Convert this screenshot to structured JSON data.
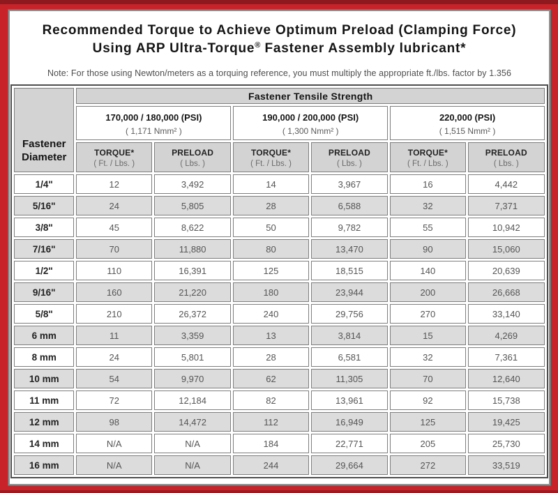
{
  "colors": {
    "frame_red": "#C9232A",
    "frame_dark_red": "#8E1A1F",
    "header_gray": "#D3D3D3",
    "row_shade_gray": "#DCDCDC"
  },
  "title": {
    "line1": "Recommended Torque to Achieve Optimum Preload (Clamping Force)",
    "line2_pre": "Using ARP Ultra-Torque",
    "line2_reg": "®",
    "line2_post": " Fastener Assembly lubricant*",
    "note": "Note: For those using Newton/meters as a torquing reference, you must multiply the appropriate ft./lbs. factor by 1.356"
  },
  "table": {
    "tensile_header": "Fastener Tensile Strength",
    "diameter_header_line1": "Fastener",
    "diameter_header_line2": "Diameter",
    "strength_groups": [
      {
        "psi": "170,000 / 180,000 (PSI)",
        "nmm": "( 1,171 Nmm² )"
      },
      {
        "psi": "190,000 / 200,000 (PSI)",
        "nmm": "( 1,300 Nmm² )"
      },
      {
        "psi": "220,000 (PSI)",
        "nmm": "( 1,515 Nmm² )"
      }
    ],
    "col_headers": {
      "torque": "TORQUE*",
      "torque_unit": "( Ft. / Lbs. )",
      "preload": "PRELOAD",
      "preload_unit": "( Lbs. )"
    },
    "rows": [
      {
        "d": "1/4\"",
        "v": [
          "12",
          "3,492",
          "14",
          "3,967",
          "16",
          "4,442"
        ]
      },
      {
        "d": "5/16\"",
        "v": [
          "24",
          "5,805",
          "28",
          "6,588",
          "32",
          "7,371"
        ]
      },
      {
        "d": "3/8\"",
        "v": [
          "45",
          "8,622",
          "50",
          "9,782",
          "55",
          "10,942"
        ]
      },
      {
        "d": "7/16\"",
        "v": [
          "70",
          "11,880",
          "80",
          "13,470",
          "90",
          "15,060"
        ]
      },
      {
        "d": "1/2\"",
        "v": [
          "110",
          "16,391",
          "125",
          "18,515",
          "140",
          "20,639"
        ]
      },
      {
        "d": "9/16\"",
        "v": [
          "160",
          "21,220",
          "180",
          "23,944",
          "200",
          "26,668"
        ]
      },
      {
        "d": "5/8\"",
        "v": [
          "210",
          "26,372",
          "240",
          "29,756",
          "270",
          "33,140"
        ]
      },
      {
        "d": "6 mm",
        "v": [
          "11",
          "3,359",
          "13",
          "3,814",
          "15",
          "4,269"
        ]
      },
      {
        "d": "8 mm",
        "v": [
          "24",
          "5,801",
          "28",
          "6,581",
          "32",
          "7,361"
        ]
      },
      {
        "d": "10 mm",
        "v": [
          "54",
          "9,970",
          "62",
          "11,305",
          "70",
          "12,640"
        ]
      },
      {
        "d": "11 mm",
        "v": [
          "72",
          "12,184",
          "82",
          "13,961",
          "92",
          "15,738"
        ]
      },
      {
        "d": "12 mm",
        "v": [
          "98",
          "14,472",
          "112",
          "16,949",
          "125",
          "19,425"
        ]
      },
      {
        "d": "14 mm",
        "v": [
          "N/A",
          "N/A",
          "184",
          "22,771",
          "205",
          "25,730"
        ]
      },
      {
        "d": "16 mm",
        "v": [
          "N/A",
          "N/A",
          "244",
          "29,664",
          "272",
          "33,519"
        ]
      }
    ]
  }
}
